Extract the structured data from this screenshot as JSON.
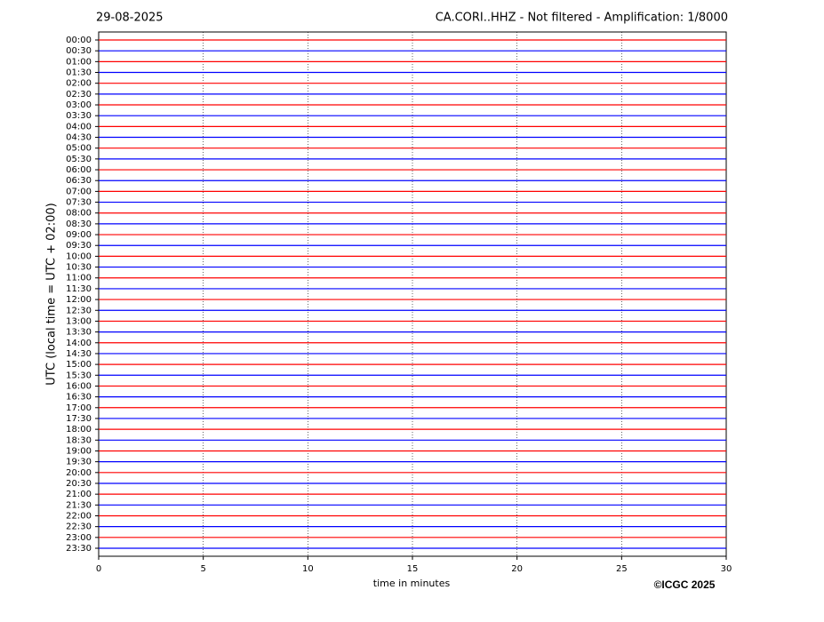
{
  "chart_data": {
    "type": "helicorder",
    "title_left": "29-08-2025",
    "title_right": "CA.CORI..HHZ - Not filtered - Amplification: 1/8000",
    "ylabel": "UTC (local time = UTC + 02:00)",
    "xlabel": "time in minutes",
    "copyright": "©ICGC 2025",
    "categories": [
      "00:00",
      "00:30",
      "01:00",
      "01:30",
      "02:00",
      "02:30",
      "03:00",
      "03:30",
      "04:00",
      "04:30",
      "05:00",
      "05:30",
      "06:00",
      "06:30",
      "07:00",
      "07:30",
      "08:00",
      "08:30",
      "09:00",
      "09:30",
      "10:00",
      "10:30",
      "11:00",
      "11:30",
      "12:00",
      "12:30",
      "13:00",
      "13:30",
      "14:00",
      "14:30",
      "15:00",
      "15:30",
      "16:00",
      "16:30",
      "17:00",
      "17:30",
      "18:00",
      "18:30",
      "19:00",
      "19:30",
      "20:00",
      "20:30",
      "21:00",
      "21:30",
      "22:00",
      "22:30",
      "23:00",
      "23:30"
    ],
    "colors": [
      "#ff0000",
      "#0000ff"
    ],
    "xlim": [
      0,
      30
    ],
    "xticks": [
      0,
      5,
      10,
      15,
      20,
      25,
      30
    ],
    "grid": true
  }
}
